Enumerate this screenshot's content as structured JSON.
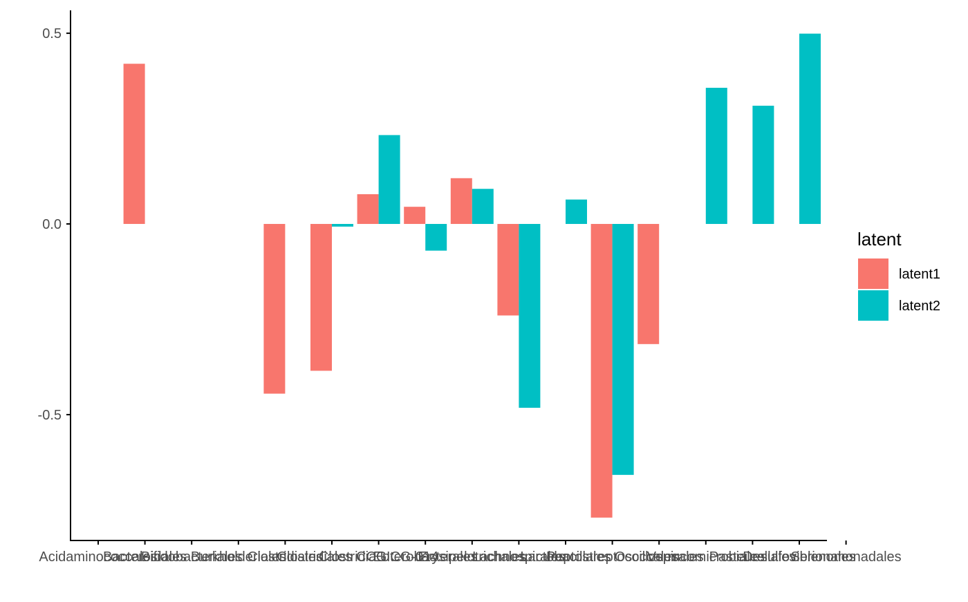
{
  "chart_data": {
    "type": "bar",
    "categories": [
      "Acidaminococcales",
      "Bacteroidales",
      "Bifidobacteriales",
      "Burkholderiales",
      "Clostridiales",
      "Clostridiales CCG",
      "Clostridia UCG-014",
      "Enterobacterales",
      "Erysipelotrichales",
      "Lachnospirales",
      "Lactobacillales",
      "Peptostreptococcales",
      "Oscillospirales",
      "Verrucomicrobiales",
      "Pasteurellales",
      "Desulfovibrionales",
      "Selenomonadales"
    ],
    "series": [
      {
        "name": "latent1",
        "color": "#F8766D",
        "values": [
          null,
          0.42,
          null,
          null,
          -0.445,
          -0.385,
          0.078,
          0.045,
          0.12,
          -0.24,
          null,
          -0.77,
          -0.315,
          null,
          null,
          null,
          null
        ]
      },
      {
        "name": "latent2",
        "color": "#00BFC4",
        "values": [
          null,
          null,
          null,
          null,
          null,
          -0.007,
          0.233,
          -0.07,
          0.092,
          -0.482,
          0.064,
          -0.658,
          null,
          0.357,
          0.31,
          0.499,
          null
        ]
      }
    ],
    "xlabel": "",
    "ylabel": "",
    "ylim": [
      -0.83,
      0.56
    ],
    "yticks": [
      -0.5,
      0.0,
      0.5
    ],
    "ytick_labels": [
      "-0.5",
      "0.0",
      "0.5"
    ],
    "grid": false,
    "legend": {
      "title": "latent",
      "position": "right"
    }
  }
}
